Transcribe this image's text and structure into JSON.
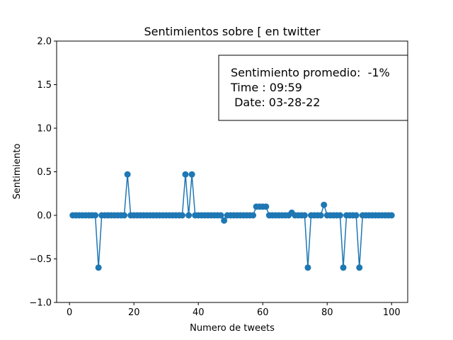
{
  "chart_data": {
    "type": "scatter",
    "title": "Sentimientos sobre [ en twitter",
    "xlabel": "Numero de tweets",
    "ylabel": "Sentimiento",
    "xlim": [
      -4,
      105
    ],
    "ylim": [
      -1.0,
      2.0
    ],
    "xticks": [
      0,
      20,
      40,
      60,
      80,
      100
    ],
    "yticks": [
      -1.0,
      -0.5,
      0.0,
      0.5,
      1.0,
      1.5,
      2.0
    ],
    "xtick_labels": [
      "0",
      "20",
      "40",
      "60",
      "80",
      "100"
    ],
    "ytick_labels": [
      "−1.0",
      "−0.5",
      "0.0",
      "0.5",
      "1.0",
      "1.5",
      "2.0"
    ],
    "grid": false,
    "series_color": "#1f77b4",
    "x": [
      1,
      2,
      3,
      4,
      5,
      6,
      7,
      8,
      9,
      10,
      11,
      12,
      13,
      14,
      15,
      16,
      17,
      18,
      19,
      20,
      21,
      22,
      23,
      24,
      25,
      26,
      27,
      28,
      29,
      30,
      31,
      32,
      33,
      34,
      35,
      36,
      37,
      38,
      39,
      40,
      41,
      42,
      43,
      44,
      45,
      46,
      47,
      48,
      49,
      50,
      51,
      52,
      53,
      54,
      55,
      56,
      57,
      58,
      59,
      60,
      61,
      62,
      63,
      64,
      65,
      66,
      67,
      68,
      69,
      70,
      71,
      72,
      73,
      74,
      75,
      76,
      77,
      78,
      79,
      80,
      81,
      82,
      83,
      84,
      85,
      86,
      87,
      88,
      89,
      90,
      91,
      92,
      93,
      94,
      95,
      96,
      97,
      98,
      99,
      100
    ],
    "y": [
      0,
      0,
      0,
      0,
      0,
      0,
      0,
      0,
      -0.6,
      0,
      0,
      0,
      0,
      0,
      0,
      0,
      0,
      0.47,
      0,
      0,
      0,
      0,
      0,
      0,
      0,
      0,
      0,
      0,
      0,
      0,
      0,
      0,
      0,
      0,
      0,
      0.47,
      0,
      0.47,
      0,
      0,
      0,
      0,
      0,
      0,
      0,
      0,
      0,
      -0.06,
      0,
      0,
      0,
      0,
      0,
      0,
      0,
      0,
      0,
      0.1,
      0.1,
      0.1,
      0.1,
      0,
      0,
      0,
      0,
      0,
      0,
      0,
      0.03,
      0,
      0,
      0,
      0,
      -0.6,
      0,
      0,
      0,
      0,
      0.12,
      0,
      0,
      0,
      0,
      0,
      -0.6,
      0,
      0,
      0,
      0,
      -0.6,
      0,
      0,
      0,
      0,
      0,
      0,
      0,
      0,
      0,
      0
    ],
    "annotation": {
      "lines": [
        "Sentimiento promedio:  -1%",
        "Time : 09:59",
        " Date: 03-28-22"
      ]
    }
  }
}
